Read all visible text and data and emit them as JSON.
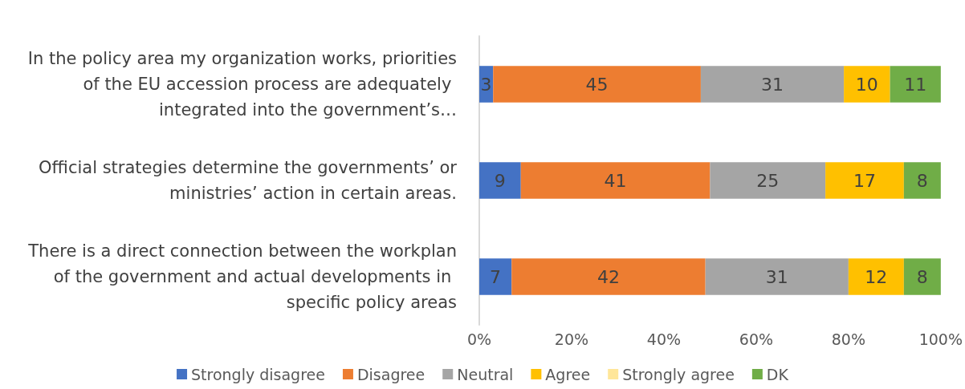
{
  "chart_data": {
    "type": "bar",
    "orientation": "horizontal",
    "stacked": true,
    "categories": [
      "In the policy area my organization works, priorities of the EU accession process are adequately integrated into the government’s…",
      "Official strategies determine the governments’ or ministries’ action in certain areas.",
      "There is a direct connection between the workplan of the government and actual developments in specific policy areas"
    ],
    "series": [
      {
        "name": "Strongly disagree",
        "color": "#4472c4",
        "values": [
          3,
          9,
          7
        ]
      },
      {
        "name": "Disagree",
        "color": "#ed7d31",
        "values": [
          45,
          41,
          42
        ]
      },
      {
        "name": "Neutral",
        "color": "#a5a5a5",
        "values": [
          31,
          25,
          31
        ]
      },
      {
        "name": "Agree",
        "color": "#ffc000",
        "values": [
          10,
          17,
          12
        ]
      },
      {
        "name": "Strongly agree",
        "color": "#ffe699",
        "values": [
          null,
          null,
          null
        ]
      },
      {
        "name": "DK",
        "color": "#70ad47",
        "values": [
          11,
          8,
          8
        ]
      }
    ],
    "xlim": [
      0,
      100
    ],
    "xticks": [
      {
        "value": 0,
        "label": "0%"
      },
      {
        "value": 20,
        "label": "20%"
      },
      {
        "value": 40,
        "label": "40%"
      },
      {
        "value": 60,
        "label": "60%"
      },
      {
        "value": 80,
        "label": "80%"
      },
      {
        "value": 100,
        "label": "100%"
      }
    ],
    "data_labels": true,
    "grid": false,
    "legend": "bottom"
  }
}
